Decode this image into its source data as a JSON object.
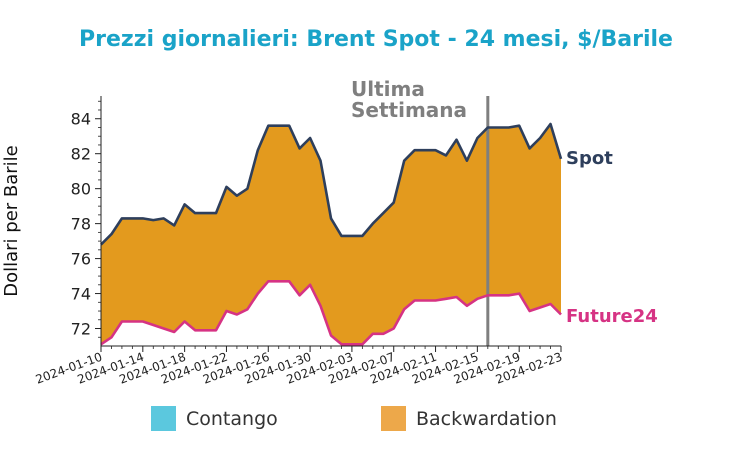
{
  "chart_data": {
    "type": "area",
    "title": "Prezzi giornalieri: Brent Spot - 24 mesi, $/Barile",
    "ylabel": "Dollari per Barile",
    "xlabel": "",
    "ylim": [
      71.0,
      85.3
    ],
    "yticks": [
      72,
      74,
      76,
      78,
      80,
      82,
      84
    ],
    "x": [
      "2024-01-10",
      "2024-01-11",
      "2024-01-12",
      "2024-01-13",
      "2024-01-14",
      "2024-01-15",
      "2024-01-16",
      "2024-01-17",
      "2024-01-18",
      "2024-01-19",
      "2024-01-20",
      "2024-01-21",
      "2024-01-22",
      "2024-01-23",
      "2024-01-24",
      "2024-01-25",
      "2024-01-26",
      "2024-01-27",
      "2024-01-28",
      "2024-01-29",
      "2024-01-30",
      "2024-01-31",
      "2024-02-01",
      "2024-02-02",
      "2024-02-03",
      "2024-02-04",
      "2024-02-05",
      "2024-02-06",
      "2024-02-07",
      "2024-02-08",
      "2024-02-09",
      "2024-02-10",
      "2024-02-11",
      "2024-02-12",
      "2024-02-13",
      "2024-02-14",
      "2024-02-15",
      "2024-02-16",
      "2024-02-17",
      "2024-02-18",
      "2024-02-19",
      "2024-02-20",
      "2024-02-21",
      "2024-02-22",
      "2024-02-23"
    ],
    "xtick_labels": [
      "2024-01-10",
      "2024-01-14",
      "2024-01-18",
      "2024-01-22",
      "2024-01-26",
      "2024-01-30",
      "2024-02-03",
      "2024-02-07",
      "2024-02-11",
      "2024-02-15",
      "2024-02-19",
      "2024-02-23"
    ],
    "series": [
      {
        "name": "Spot",
        "color": "#2e3f5c",
        "values": [
          76.8,
          77.4,
          78.3,
          78.3,
          78.3,
          78.2,
          78.3,
          77.9,
          79.1,
          78.6,
          78.6,
          78.6,
          80.1,
          79.6,
          80.0,
          82.2,
          83.6,
          83.6,
          83.6,
          82.3,
          82.9,
          81.6,
          78.3,
          77.3,
          77.3,
          77.3,
          78.0,
          78.6,
          79.2,
          81.6,
          82.2,
          82.2,
          82.2,
          81.9,
          82.8,
          81.6,
          82.9,
          83.5,
          83.5,
          83.5,
          83.6,
          82.3,
          82.9,
          83.7,
          81.7
        ]
      },
      {
        "name": "Future24",
        "color": "#d63384",
        "values": [
          71.1,
          71.5,
          72.4,
          72.4,
          72.4,
          72.2,
          72.0,
          71.8,
          72.4,
          71.9,
          71.9,
          71.9,
          73.0,
          72.8,
          73.1,
          74.0,
          74.7,
          74.7,
          74.7,
          73.9,
          74.5,
          73.3,
          71.6,
          71.1,
          71.1,
          71.1,
          71.7,
          71.7,
          72.0,
          73.1,
          73.6,
          73.6,
          73.6,
          73.7,
          73.8,
          73.3,
          73.7,
          73.9,
          73.9,
          73.9,
          74.0,
          73.0,
          73.2,
          73.4,
          72.8
        ]
      }
    ],
    "fill_colors": {
      "contango": "#5bc8de",
      "backwardation": "#e39a1e"
    },
    "legend": {
      "items": [
        {
          "label": "Contango",
          "color": "#5bc8de"
        },
        {
          "label": "Backwardation",
          "color": "#eda84a"
        }
      ],
      "placement": "bottom"
    },
    "annotation": {
      "text": [
        "Ultima",
        "Settimana"
      ],
      "x": "2024-02-16",
      "color": "#7f7f7f"
    },
    "title_color": "#1aa3c8",
    "grid": false
  }
}
